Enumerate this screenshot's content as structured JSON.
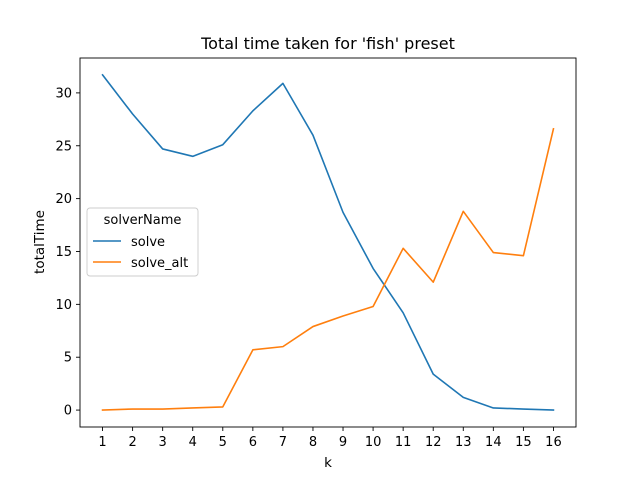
{
  "chart_data": {
    "type": "line",
    "title": "Total time taken for 'fish' preset",
    "xlabel": "k",
    "ylabel": "totalTime",
    "x": [
      1,
      2,
      3,
      4,
      5,
      6,
      7,
      8,
      9,
      10,
      11,
      12,
      13,
      14,
      15,
      16
    ],
    "xticks": [
      1,
      2,
      3,
      4,
      5,
      6,
      7,
      8,
      9,
      10,
      11,
      12,
      13,
      14,
      15,
      16
    ],
    "yticks": [
      0,
      5,
      10,
      15,
      20,
      25,
      30
    ],
    "xlim": [
      0.25,
      16.75
    ],
    "ylim": [
      -1.6,
      33.3
    ],
    "grid": false,
    "legend": {
      "title": "solverName",
      "placement": "center-left"
    },
    "series": [
      {
        "name": "solve",
        "color": "#1f77b4",
        "values": [
          31.7,
          28.0,
          24.7,
          24.0,
          25.1,
          28.3,
          30.9,
          26.0,
          18.7,
          13.4,
          9.2,
          3.4,
          1.2,
          0.2,
          0.1,
          0.0
        ]
      },
      {
        "name": "solve_alt",
        "color": "#ff7f0e",
        "values": [
          0.0,
          0.1,
          0.1,
          0.2,
          0.3,
          5.7,
          6.0,
          7.9,
          8.9,
          9.8,
          15.3,
          12.1,
          18.8,
          14.9,
          14.6,
          26.6
        ]
      }
    ]
  }
}
